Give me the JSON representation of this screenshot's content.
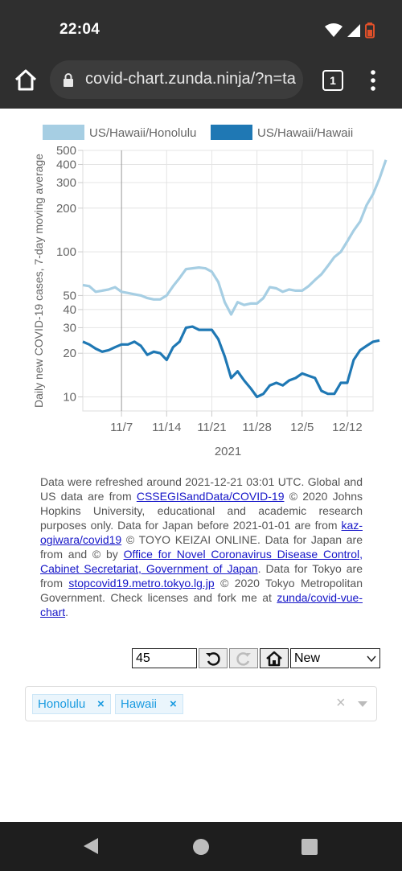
{
  "status_bar": {
    "time": "22:04"
  },
  "browser": {
    "url": "covid-chart.zunda.ninja/?n=ta",
    "tab_count": "1"
  },
  "chart_data": {
    "type": "line",
    "ylabel": "Daily new COVID-19 cases, 7-day moving average",
    "xlabel": "2021",
    "y_scale": "log",
    "ylim": [
      8,
      500
    ],
    "y_ticks": [
      10,
      20,
      30,
      40,
      50,
      100,
      200,
      300,
      400,
      500
    ],
    "x_ticks": [
      "11/7",
      "11/14",
      "11/21",
      "11/28",
      "12/5",
      "12/12"
    ],
    "x_tick_days": [
      6,
      13,
      20,
      27,
      34,
      41
    ],
    "x_range": [
      0,
      45
    ],
    "legend_position": "top",
    "series": [
      {
        "name": "US/Hawaii/Honolulu",
        "color": "#a6cee3",
        "values": [
          59,
          58,
          53,
          54,
          55,
          57,
          53,
          52,
          51,
          50,
          48,
          47,
          47,
          50,
          58,
          66,
          76,
          77,
          78,
          77,
          73,
          62,
          45,
          37,
          45,
          43,
          44,
          44,
          48,
          57,
          56,
          53,
          55,
          54,
          54,
          58,
          64,
          70,
          80,
          92,
          100,
          118,
          140,
          162,
          210,
          250,
          320,
          430
        ]
      },
      {
        "name": "US/Hawaii/Hawaii",
        "color": "#1f78b4",
        "values": [
          24,
          23,
          21.5,
          20.5,
          21,
          22,
          23,
          23,
          24,
          22.5,
          19.5,
          20.5,
          20,
          18,
          22,
          24,
          30,
          30.5,
          29,
          29,
          29,
          25,
          19,
          13.5,
          15,
          13,
          11.5,
          10,
          10.5,
          12,
          12.5,
          12,
          13,
          13.5,
          14.5,
          14,
          13.5,
          11,
          10.5,
          10.5,
          12.5,
          12.5,
          18,
          21,
          22.5,
          24,
          24.5
        ]
      }
    ]
  },
  "refresh_text": {
    "p1": "Data were refreshed around 2021-12-21 03:01 UTC. Global and US data are from ",
    "l1": "CSSEGISandData/COVID-19",
    "p2": " © 2020 Johns Hopkins University, educational and academic research purposes only. Data for Japan before 2021-01-01 are from ",
    "l2": "kaz-ogiwara/covid19",
    "p3": " © TOYO KEIZAI ONLINE. Data for Japan are from and © by ",
    "l3": "Office for Novel Coronavirus Disease Control, Cabinet Secretariat, Government of Japan",
    "p4": ". Data for Tokyo are from ",
    "l4": "stopcovid19.metro.tokyo.lg.jp",
    "p5": " © 2020 Tokyo Metropolitan Government. Check licenses and fork me at ",
    "l5": "zunda/covid-vue-chart",
    "p6": "."
  },
  "controls": {
    "days_value": "45",
    "mode_selected": "New"
  },
  "tags": [
    {
      "label": "Honolulu"
    },
    {
      "label": "Hawaii"
    }
  ],
  "tag_remove": "×",
  "clear_glyph": "×"
}
